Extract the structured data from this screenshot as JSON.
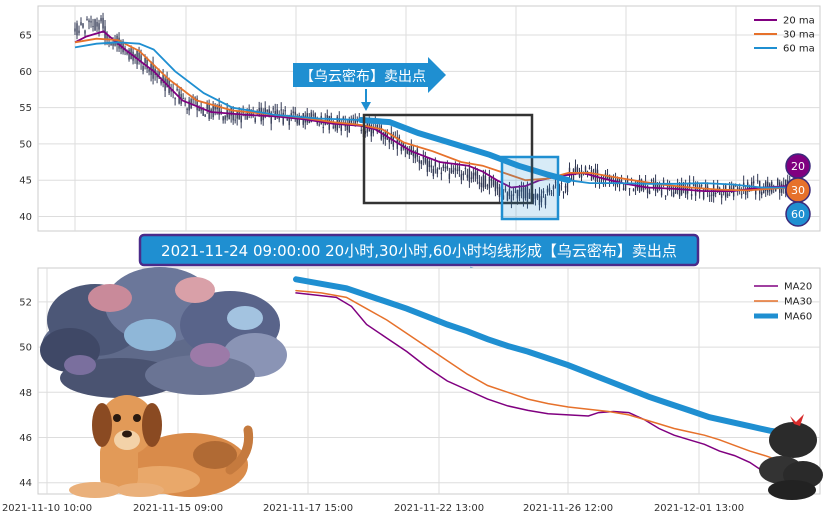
{
  "colors": {
    "ma20": "#800080",
    "ma30": "#e6712b",
    "ma60": "#1f8fd1",
    "candle": "#333a55",
    "banner_bg": "#1f8fd1",
    "banner_border": "#4a2b8a",
    "grid": "#dddddd",
    "plot_bg": "#ffffff"
  },
  "top_legend": [
    {
      "label": "20 ma",
      "color": "#800080"
    },
    {
      "label": "30 ma",
      "color": "#e6712b"
    },
    {
      "label": "60 ma",
      "color": "#1f8fd1"
    }
  ],
  "bottom_legend": [
    {
      "label": "MA20",
      "color": "#800080"
    },
    {
      "label": "MA30",
      "color": "#e6712b"
    },
    {
      "label": "MA60",
      "color": "#1f8fd1"
    }
  ],
  "badges": [
    {
      "label": "20",
      "color": "#800080"
    },
    {
      "label": "30",
      "color": "#e6712b"
    },
    {
      "label": "60",
      "color": "#1f8fd1"
    }
  ],
  "callout_arrow": "【乌云密布】卖出点",
  "banner_text": "2021-11-24 09:00:00 20小时,30小时,60小时均线形成【乌云密布】卖出点",
  "icons": [
    "storm-cloud-icon",
    "dog-icon",
    "dark-cloud-icon"
  ],
  "chart_data": [
    {
      "type": "line",
      "ylim": [
        38,
        69
      ],
      "yticks": [
        40,
        45,
        50,
        55,
        60,
        65
      ],
      "grid": true,
      "legend_position": "top-right",
      "series": [
        {
          "name": "20 ma",
          "color": "#800080",
          "points": [
            [
              0,
              64
            ],
            [
              8,
              64.8
            ],
            [
              20,
              65.5
            ],
            [
              35,
              63
            ],
            [
              55,
              60
            ],
            [
              75,
              56
            ],
            [
              95,
              54.4
            ],
            [
              120,
              54
            ],
            [
              140,
              53.8
            ],
            [
              160,
              53.4
            ],
            [
              180,
              52.8
            ],
            [
              200,
              52.5
            ],
            [
              210,
              52
            ],
            [
              220,
              50.8
            ],
            [
              235,
              49
            ],
            [
              255,
              47.5
            ],
            [
              275,
              47
            ],
            [
              285,
              46.2
            ],
            [
              295,
              45
            ],
            [
              305,
              44
            ],
            [
              315,
              44.2
            ],
            [
              325,
              45
            ],
            [
              340,
              45.6
            ],
            [
              355,
              46
            ],
            [
              370,
              45.2
            ],
            [
              385,
              44.5
            ],
            [
              400,
              44
            ],
            [
              420,
              43.8
            ],
            [
              440,
              43.5
            ],
            [
              460,
              43.5
            ],
            [
              480,
              44
            ],
            [
              500,
              44.2
            ]
          ]
        },
        {
          "name": "30 ma",
          "color": "#e6712b",
          "points": [
            [
              0,
              64
            ],
            [
              15,
              64.5
            ],
            [
              30,
              64.3
            ],
            [
              45,
              62.8
            ],
            [
              65,
              59
            ],
            [
              85,
              56
            ],
            [
              110,
              54.6
            ],
            [
              140,
              54
            ],
            [
              160,
              53.6
            ],
            [
              180,
              53
            ],
            [
              200,
              52.6
            ],
            [
              215,
              52
            ],
            [
              230,
              50.2
            ],
            [
              250,
              49
            ],
            [
              270,
              47.5
            ],
            [
              285,
              47
            ],
            [
              300,
              46
            ],
            [
              315,
              45
            ],
            [
              330,
              45.2
            ],
            [
              345,
              46
            ],
            [
              360,
              46
            ],
            [
              375,
              45.5
            ],
            [
              390,
              45
            ],
            [
              410,
              44.4
            ],
            [
              430,
              44
            ],
            [
              450,
              43.7
            ],
            [
              470,
              43.6
            ],
            [
              500,
              44
            ]
          ]
        },
        {
          "name": "60 ma",
          "color": "#1f8fd1",
          "points": [
            [
              0,
              63.3
            ],
            [
              15,
              63.8
            ],
            [
              30,
              64
            ],
            [
              45,
              63.8
            ],
            [
              55,
              63
            ],
            [
              70,
              60
            ],
            [
              90,
              57
            ],
            [
              110,
              55
            ],
            [
              140,
              54
            ],
            [
              170,
              53.5
            ],
            [
              200,
              53.3
            ],
            [
              220,
              53
            ],
            [
              240,
              51.5
            ],
            [
              265,
              50
            ],
            [
              290,
              48.5
            ],
            [
              310,
              47
            ],
            [
              330,
              45.8
            ],
            [
              345,
              45
            ],
            [
              360,
              44.6
            ],
            [
              380,
              44.6
            ],
            [
              400,
              44.5
            ],
            [
              420,
              44.5
            ],
            [
              440,
              44.6
            ],
            [
              460,
              44.4
            ],
            [
              480,
              44
            ],
            [
              500,
              44
            ]
          ]
        }
      ]
    },
    {
      "type": "line",
      "ylim": [
        43.5,
        53.5
      ],
      "yticks": [
        44,
        46,
        48,
        50,
        52
      ],
      "xlabels": [
        "2021-11-10 10:00",
        "2021-11-15 09:00",
        "2021-11-17 15:00",
        "2021-11-22 13:00",
        "2021-11-26 12:00",
        "2021-12-01 13:00"
      ],
      "grid": true,
      "legend_position": "top-right",
      "series": [
        {
          "name": "MA20",
          "color": "#800080",
          "points": [
            [
              0,
              52.4
            ],
            [
              20,
              52.3
            ],
            [
              40,
              52.2
            ],
            [
              55,
              51.8
            ],
            [
              70,
              51.0
            ],
            [
              90,
              50.4
            ],
            [
              110,
              49.8
            ],
            [
              130,
              49.1
            ],
            [
              150,
              48.5
            ],
            [
              170,
              48.1
            ],
            [
              190,
              47.7
            ],
            [
              210,
              47.4
            ],
            [
              230,
              47.2
            ],
            [
              250,
              47.05
            ],
            [
              270,
              47.0
            ],
            [
              290,
              46.95
            ],
            [
              300,
              47.1
            ],
            [
              315,
              47.15
            ],
            [
              330,
              47.1
            ],
            [
              345,
              46.8
            ],
            [
              360,
              46.4
            ],
            [
              375,
              46.1
            ],
            [
              390,
              45.9
            ],
            [
              405,
              45.7
            ],
            [
              420,
              45.4
            ],
            [
              435,
              45.2
            ],
            [
              450,
              44.9
            ],
            [
              460,
              44.6
            ],
            [
              470,
              44.4
            ],
            [
              478,
              44.3
            ]
          ]
        },
        {
          "name": "MA30",
          "color": "#e6712b",
          "points": [
            [
              0,
              52.5
            ],
            [
              25,
              52.4
            ],
            [
              50,
              52.2
            ],
            [
              70,
              51.7
            ],
            [
              90,
              51.2
            ],
            [
              110,
              50.6
            ],
            [
              130,
              50.0
            ],
            [
              150,
              49.4
            ],
            [
              170,
              48.8
            ],
            [
              190,
              48.3
            ],
            [
              210,
              48.0
            ],
            [
              230,
              47.7
            ],
            [
              250,
              47.5
            ],
            [
              270,
              47.35
            ],
            [
              290,
              47.25
            ],
            [
              310,
              47.15
            ],
            [
              330,
              47.0
            ],
            [
              345,
              46.8
            ],
            [
              360,
              46.6
            ],
            [
              375,
              46.4
            ],
            [
              390,
              46.25
            ],
            [
              405,
              46.1
            ],
            [
              420,
              45.9
            ],
            [
              435,
              45.65
            ],
            [
              450,
              45.4
            ],
            [
              465,
              45.2
            ],
            [
              478,
              45.0
            ]
          ]
        },
        {
          "name": "MA60",
          "color": "#1f8fd1",
          "points": [
            [
              0,
              53.0
            ],
            [
              25,
              52.8
            ],
            [
              50,
              52.6
            ],
            [
              70,
              52.3
            ],
            [
              90,
              52.0
            ],
            [
              110,
              51.7
            ],
            [
              130,
              51.35
            ],
            [
              150,
              51.0
            ],
            [
              170,
              50.7
            ],
            [
              190,
              50.35
            ],
            [
              210,
              50.05
            ],
            [
              230,
              49.8
            ],
            [
              250,
              49.5
            ],
            [
              270,
              49.2
            ],
            [
              290,
              48.85
            ],
            [
              310,
              48.5
            ],
            [
              330,
              48.15
            ],
            [
              350,
              47.8
            ],
            [
              370,
              47.5
            ],
            [
              390,
              47.2
            ],
            [
              410,
              46.9
            ],
            [
              430,
              46.7
            ],
            [
              450,
              46.5
            ],
            [
              470,
              46.3
            ],
            [
              478,
              46.25
            ]
          ]
        }
      ]
    }
  ]
}
